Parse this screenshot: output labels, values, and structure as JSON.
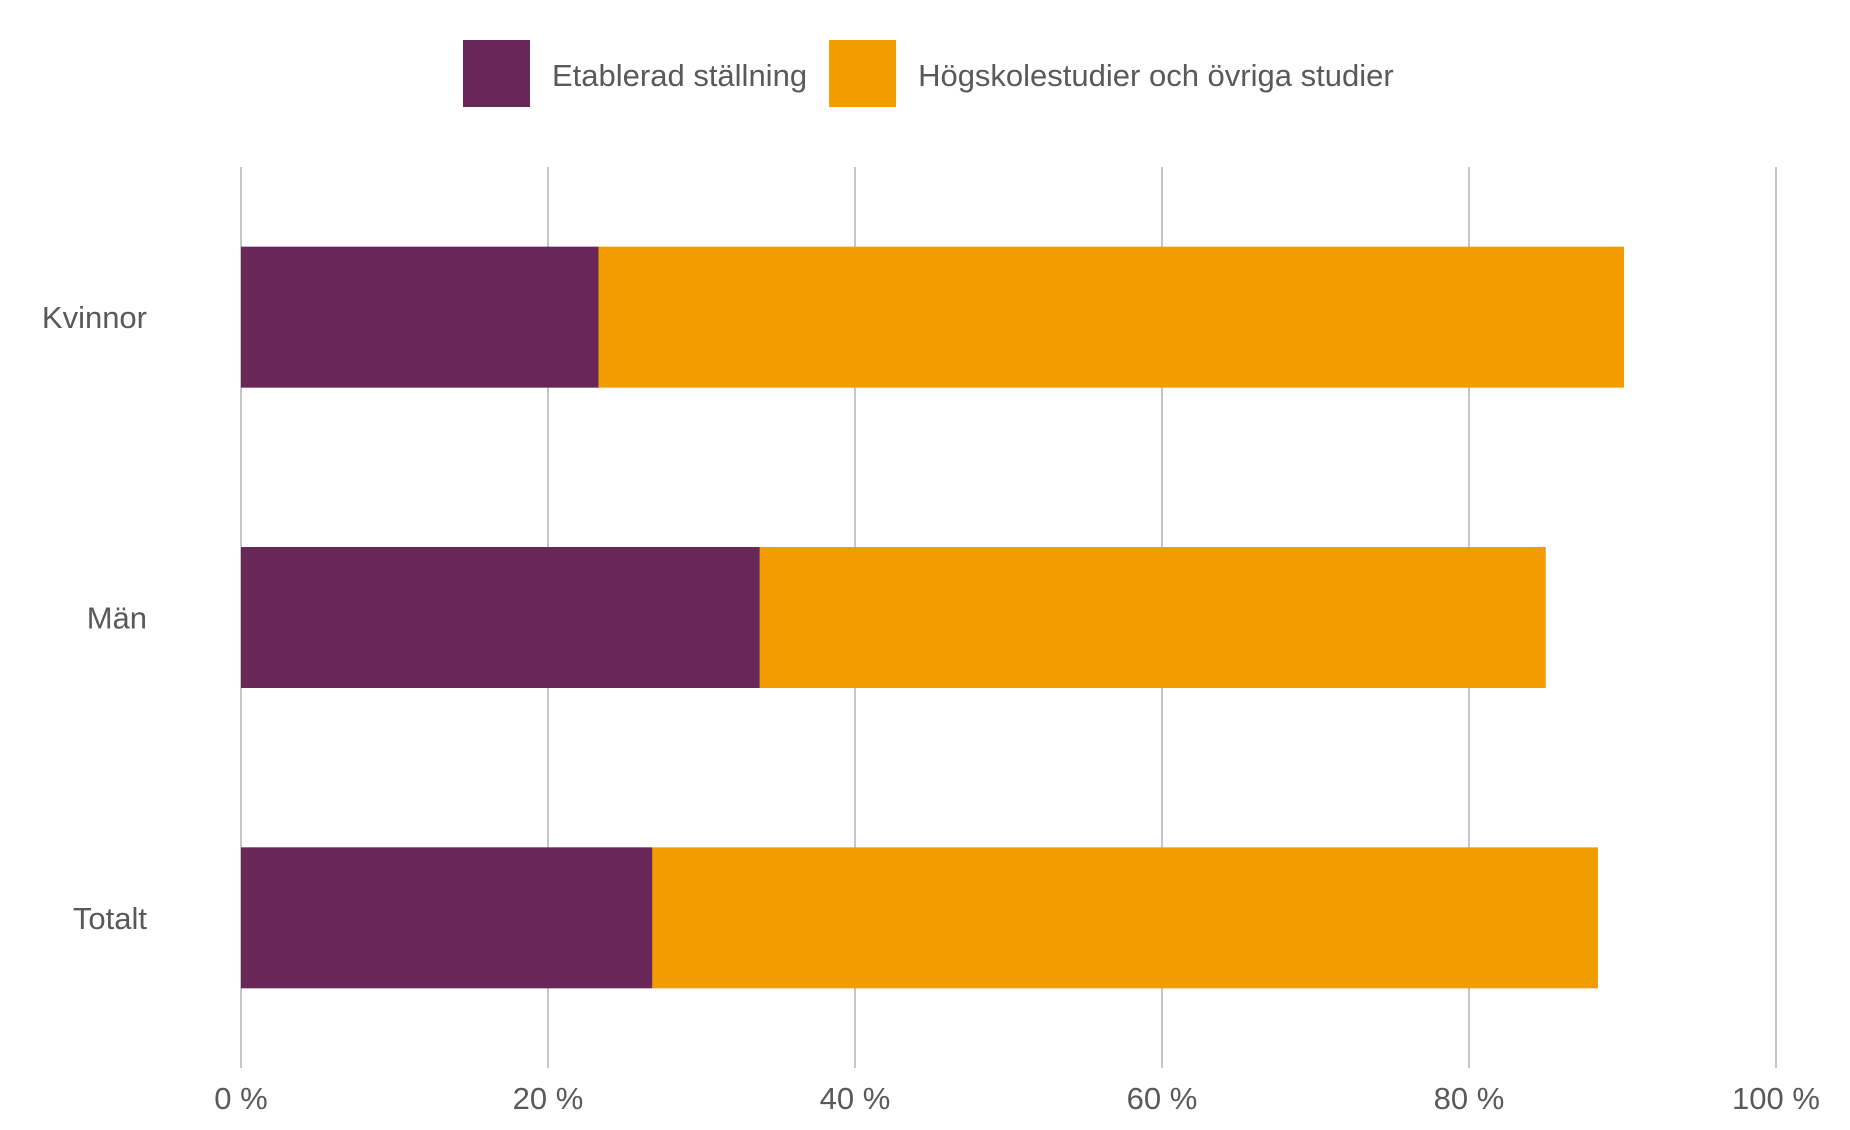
{
  "chart_data": {
    "type": "bar",
    "orientation": "horizontal",
    "stacked": true,
    "categories": [
      "Kvinnor",
      "Män",
      "Totalt"
    ],
    "series": [
      {
        "name": "Etablerad ställning",
        "color": "#692757",
        "values": [
          23.3,
          33.8,
          26.8
        ]
      },
      {
        "name": "Högskolestudier och övriga studier",
        "color": "#F39C00",
        "values": [
          66.8,
          51.2,
          61.6
        ]
      }
    ],
    "xticks": [
      "0 %",
      "20 %",
      "40 %",
      "60 %",
      "80 %",
      "100 %"
    ],
    "xlim": [
      0,
      100
    ],
    "grid": true,
    "legend": "top-center",
    "title": "",
    "xlabel": "",
    "ylabel": ""
  }
}
